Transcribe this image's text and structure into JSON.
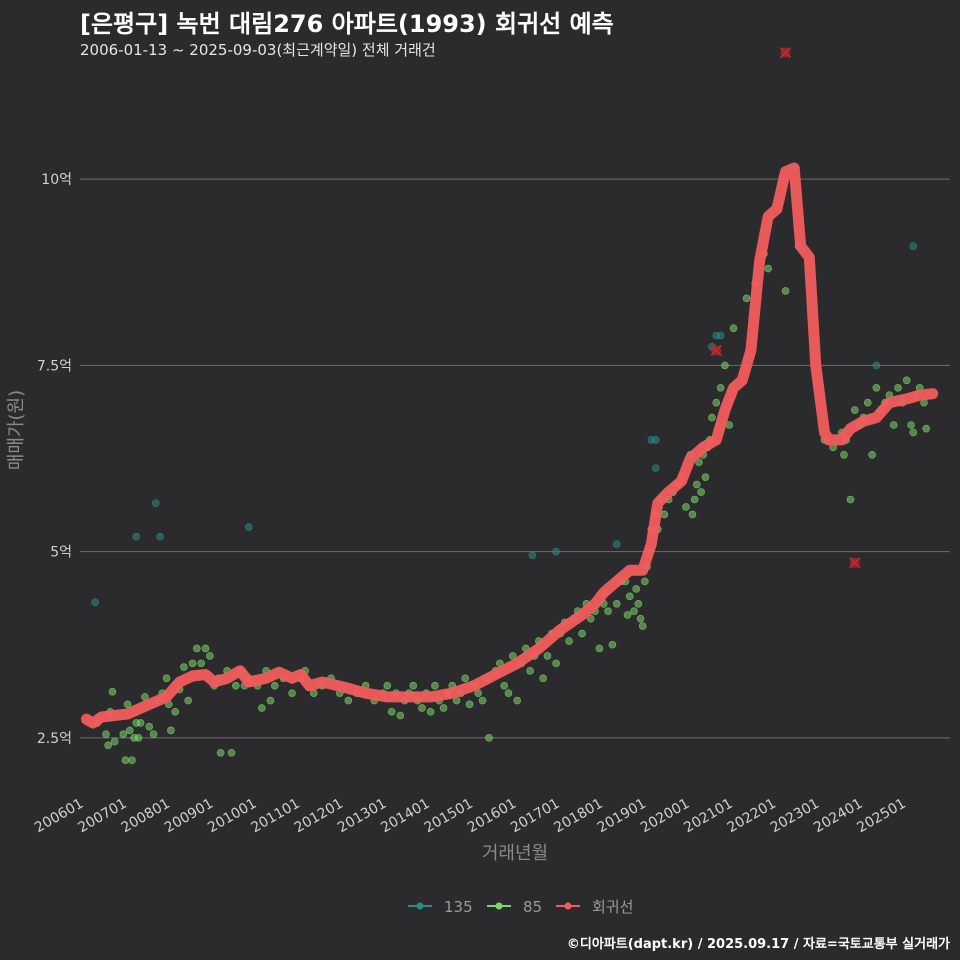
{
  "title": "[은평구] 녹번 대림276 아파트(1993) 회귀선 예측",
  "subtitle": "2006-01-13 ~ 2025-09-03(최근계약일) 전체 거래건",
  "credit": "©디아파트(dapt.kr) / 2025.09.17 / 자료=국토교통부 실거래가",
  "chart_data": {
    "type": "scatter",
    "xlabel": "거래년월",
    "ylabel": "매매가(원)",
    "xlim": [
      2005.9,
      2026.0
    ],
    "ylim": [
      1.8,
      11.6
    ],
    "x_ticks": [
      2006,
      2007,
      2008,
      2009,
      2010,
      2011,
      2012,
      2013,
      2014,
      2015,
      2016,
      2017,
      2018,
      2019,
      2020,
      2021,
      2022,
      2023,
      2024,
      2025
    ],
    "x_tick_labels": [
      "200601",
      "200701",
      "200801",
      "200901",
      "201001",
      "201101",
      "201201",
      "201301",
      "201401",
      "201501",
      "201601",
      "201701",
      "201801",
      "201901",
      "202001",
      "202101",
      "202201",
      "202301",
      "202401",
      "202501"
    ],
    "y_ticks": [
      2.5,
      5,
      7.5,
      10
    ],
    "y_tick_labels": [
      "2.5억",
      "5억",
      "7.5억",
      "10억"
    ],
    "grid": "horizontal",
    "legend_position": "bottom",
    "colors": {
      "s135": "#2a8c84",
      "s85": "#7dd46a",
      "regression": "#f25c5c",
      "outlier": "#c0282d"
    },
    "series": [
      {
        "name": "135",
        "type": "scatter",
        "points": [
          [
            2006.25,
            4.32
          ],
          [
            2007.2,
            5.2
          ],
          [
            2007.65,
            5.65
          ],
          [
            2007.75,
            5.2
          ],
          [
            2009.8,
            5.33
          ],
          [
            2016.35,
            4.95
          ],
          [
            2016.9,
            5.0
          ],
          [
            2018.3,
            5.1
          ],
          [
            2019.1,
            6.5
          ],
          [
            2019.2,
            6.5
          ],
          [
            2019.2,
            6.12
          ],
          [
            2020.5,
            7.75
          ],
          [
            2020.6,
            7.9
          ],
          [
            2020.7,
            7.9
          ],
          [
            2024.3,
            7.5
          ],
          [
            2025.15,
            9.1
          ]
        ]
      },
      {
        "name": "85",
        "type": "scatter",
        "points": [
          [
            2006.3,
            2.7
          ],
          [
            2006.5,
            2.55
          ],
          [
            2006.55,
            2.4
          ],
          [
            2006.6,
            2.85
          ],
          [
            2006.65,
            3.12
          ],
          [
            2006.7,
            2.45
          ],
          [
            2006.9,
            2.55
          ],
          [
            2006.95,
            2.2
          ],
          [
            2007.0,
            2.95
          ],
          [
            2007.05,
            2.6
          ],
          [
            2007.1,
            2.2
          ],
          [
            2007.15,
            2.5
          ],
          [
            2007.2,
            2.7
          ],
          [
            2007.25,
            2.5
          ],
          [
            2007.3,
            2.7
          ],
          [
            2007.4,
            3.05
          ],
          [
            2007.5,
            2.65
          ],
          [
            2007.6,
            2.55
          ],
          [
            2007.7,
            3.0
          ],
          [
            2007.8,
            3.1
          ],
          [
            2007.9,
            3.3
          ],
          [
            2007.95,
            2.95
          ],
          [
            2008.0,
            2.6
          ],
          [
            2008.1,
            2.85
          ],
          [
            2008.2,
            3.15
          ],
          [
            2008.3,
            3.45
          ],
          [
            2008.4,
            3.0
          ],
          [
            2008.5,
            3.5
          ],
          [
            2008.6,
            3.7
          ],
          [
            2008.7,
            3.5
          ],
          [
            2008.8,
            3.7
          ],
          [
            2008.9,
            3.6
          ],
          [
            2009.0,
            3.2
          ],
          [
            2009.1,
            3.3
          ],
          [
            2009.15,
            2.3
          ],
          [
            2009.3,
            3.4
          ],
          [
            2009.4,
            2.3
          ],
          [
            2009.5,
            3.2
          ],
          [
            2009.6,
            3.4
          ],
          [
            2009.7,
            3.2
          ],
          [
            2009.8,
            3.3
          ],
          [
            2010.0,
            3.2
          ],
          [
            2010.1,
            2.9
          ],
          [
            2010.2,
            3.4
          ],
          [
            2010.3,
            3.0
          ],
          [
            2010.4,
            3.2
          ],
          [
            2010.6,
            3.3
          ],
          [
            2010.8,
            3.1
          ],
          [
            2011.0,
            3.3
          ],
          [
            2011.1,
            3.4
          ],
          [
            2011.3,
            3.1
          ],
          [
            2011.5,
            3.2
          ],
          [
            2011.7,
            3.3
          ],
          [
            2011.9,
            3.1
          ],
          [
            2012.1,
            3.0
          ],
          [
            2012.3,
            3.1
          ],
          [
            2012.5,
            3.2
          ],
          [
            2012.7,
            3.0
          ],
          [
            2012.9,
            3.1
          ],
          [
            2013.0,
            3.2
          ],
          [
            2013.1,
            2.85
          ],
          [
            2013.2,
            3.1
          ],
          [
            2013.3,
            2.8
          ],
          [
            2013.4,
            3.0
          ],
          [
            2013.5,
            3.1
          ],
          [
            2013.6,
            3.2
          ],
          [
            2013.7,
            3.0
          ],
          [
            2013.8,
            2.9
          ],
          [
            2013.9,
            3.1
          ],
          [
            2014.0,
            2.85
          ],
          [
            2014.1,
            3.2
          ],
          [
            2014.2,
            3.0
          ],
          [
            2014.3,
            2.9
          ],
          [
            2014.4,
            3.1
          ],
          [
            2014.5,
            3.2
          ],
          [
            2014.6,
            3.0
          ],
          [
            2014.7,
            3.1
          ],
          [
            2014.8,
            3.3
          ],
          [
            2014.9,
            2.95
          ],
          [
            2015.0,
            3.2
          ],
          [
            2015.1,
            3.1
          ],
          [
            2015.2,
            3.0
          ],
          [
            2015.3,
            3.3
          ],
          [
            2015.35,
            2.5
          ],
          [
            2015.5,
            3.4
          ],
          [
            2015.6,
            3.5
          ],
          [
            2015.7,
            3.2
          ],
          [
            2015.8,
            3.1
          ],
          [
            2015.9,
            3.6
          ],
          [
            2016.0,
            3.0
          ],
          [
            2016.1,
            3.5
          ],
          [
            2016.2,
            3.7
          ],
          [
            2016.3,
            3.4
          ],
          [
            2016.4,
            3.6
          ],
          [
            2016.5,
            3.8
          ],
          [
            2016.6,
            3.3
          ],
          [
            2016.7,
            3.6
          ],
          [
            2016.8,
            3.9
          ],
          [
            2016.9,
            3.5
          ],
          [
            2017.0,
            3.9
          ],
          [
            2017.1,
            4.05
          ],
          [
            2017.2,
            3.8
          ],
          [
            2017.3,
            4.1
          ],
          [
            2017.4,
            4.2
          ],
          [
            2017.5,
            3.9
          ],
          [
            2017.6,
            4.3
          ],
          [
            2017.7,
            4.1
          ],
          [
            2017.8,
            4.2
          ],
          [
            2017.9,
            3.7
          ],
          [
            2018.0,
            4.3
          ],
          [
            2018.05,
            4.45
          ],
          [
            2018.1,
            4.2
          ],
          [
            2018.2,
            3.75
          ],
          [
            2018.3,
            4.3
          ],
          [
            2018.4,
            4.6
          ],
          [
            2018.5,
            4.6
          ],
          [
            2018.55,
            4.15
          ],
          [
            2018.6,
            4.4
          ],
          [
            2018.7,
            4.2
          ],
          [
            2018.75,
            4.5
          ],
          [
            2018.8,
            4.3
          ],
          [
            2018.85,
            4.1
          ],
          [
            2018.9,
            4.0
          ],
          [
            2018.95,
            4.6
          ],
          [
            2019.0,
            4.8
          ],
          [
            2019.05,
            5.0
          ],
          [
            2019.1,
            5.3
          ],
          [
            2019.2,
            5.5
          ],
          [
            2019.25,
            5.3
          ],
          [
            2019.3,
            5.7
          ],
          [
            2019.4,
            5.5
          ],
          [
            2019.5,
            5.7
          ],
          [
            2019.6,
            5.8
          ],
          [
            2019.7,
            5.9
          ],
          [
            2019.8,
            6.0
          ],
          [
            2019.9,
            5.6
          ],
          [
            2020.0,
            6.3
          ],
          [
            2020.05,
            5.5
          ],
          [
            2020.1,
            5.7
          ],
          [
            2020.15,
            5.9
          ],
          [
            2020.2,
            6.2
          ],
          [
            2020.25,
            5.8
          ],
          [
            2020.3,
            6.3
          ],
          [
            2020.35,
            6.0
          ],
          [
            2020.4,
            6.4
          ],
          [
            2020.45,
            6.5
          ],
          [
            2020.5,
            6.8
          ],
          [
            2020.6,
            7.0
          ],
          [
            2020.7,
            7.2
          ],
          [
            2020.8,
            7.5
          ],
          [
            2020.9,
            6.7
          ],
          [
            2021.0,
            8.0
          ],
          [
            2021.3,
            8.4
          ],
          [
            2021.5,
            8.6
          ],
          [
            2021.7,
            9.0
          ],
          [
            2021.8,
            8.8
          ],
          [
            2022.2,
            8.5
          ],
          [
            2022.5,
            9.1
          ],
          [
            2023.1,
            6.5
          ],
          [
            2023.3,
            6.4
          ],
          [
            2023.5,
            6.6
          ],
          [
            2023.55,
            6.3
          ],
          [
            2023.6,
            6.5
          ],
          [
            2023.7,
            5.7
          ],
          [
            2023.8,
            6.9
          ],
          [
            2023.9,
            6.7
          ],
          [
            2024.0,
            6.8
          ],
          [
            2024.1,
            7.0
          ],
          [
            2024.2,
            6.3
          ],
          [
            2024.3,
            7.2
          ],
          [
            2024.4,
            6.9
          ],
          [
            2024.5,
            7.0
          ],
          [
            2024.6,
            7.1
          ],
          [
            2024.7,
            6.7
          ],
          [
            2024.8,
            7.2
          ],
          [
            2024.9,
            7.0
          ],
          [
            2025.0,
            7.3
          ],
          [
            2025.1,
            6.7
          ],
          [
            2025.15,
            6.6
          ],
          [
            2025.2,
            7.1
          ],
          [
            2025.3,
            7.2
          ],
          [
            2025.4,
            7.0
          ],
          [
            2025.45,
            6.65
          ]
        ]
      },
      {
        "name": "회귀선",
        "type": "line",
        "points": [
          [
            2006.05,
            2.75
          ],
          [
            2006.2,
            2.7
          ],
          [
            2006.4,
            2.78
          ],
          [
            2007.0,
            2.82
          ],
          [
            2007.5,
            2.95
          ],
          [
            2007.9,
            3.05
          ],
          [
            2008.2,
            3.25
          ],
          [
            2008.5,
            3.33
          ],
          [
            2008.8,
            3.35
          ],
          [
            2009.0,
            3.25
          ],
          [
            2009.3,
            3.3
          ],
          [
            2009.6,
            3.4
          ],
          [
            2009.8,
            3.25
          ],
          [
            2010.2,
            3.3
          ],
          [
            2010.5,
            3.38
          ],
          [
            2010.8,
            3.3
          ],
          [
            2011.0,
            3.35
          ],
          [
            2011.2,
            3.2
          ],
          [
            2011.5,
            3.25
          ],
          [
            2012.0,
            3.18
          ],
          [
            2012.5,
            3.1
          ],
          [
            2013.0,
            3.05
          ],
          [
            2013.5,
            3.05
          ],
          [
            2014.0,
            3.05
          ],
          [
            2014.5,
            3.1
          ],
          [
            2015.0,
            3.2
          ],
          [
            2015.5,
            3.35
          ],
          [
            2016.0,
            3.5
          ],
          [
            2016.5,
            3.7
          ],
          [
            2017.0,
            3.95
          ],
          [
            2017.5,
            4.15
          ],
          [
            2017.8,
            4.3
          ],
          [
            2018.0,
            4.45
          ],
          [
            2018.3,
            4.6
          ],
          [
            2018.6,
            4.75
          ],
          [
            2018.9,
            4.75
          ],
          [
            2019.1,
            5.1
          ],
          [
            2019.25,
            5.65
          ],
          [
            2019.5,
            5.8
          ],
          [
            2019.8,
            5.95
          ],
          [
            2020.0,
            6.25
          ],
          [
            2020.3,
            6.4
          ],
          [
            2020.6,
            6.5
          ],
          [
            2020.8,
            6.9
          ],
          [
            2021.0,
            7.2
          ],
          [
            2021.2,
            7.3
          ],
          [
            2021.4,
            7.7
          ],
          [
            2021.6,
            8.9
          ],
          [
            2021.8,
            9.5
          ],
          [
            2022.0,
            9.6
          ],
          [
            2022.2,
            10.1
          ],
          [
            2022.4,
            10.15
          ],
          [
            2022.55,
            9.1
          ],
          [
            2022.75,
            8.95
          ],
          [
            2022.9,
            7.5
          ],
          [
            2023.1,
            6.6
          ],
          [
            2023.2,
            6.5
          ],
          [
            2023.5,
            6.5
          ],
          [
            2023.7,
            6.65
          ],
          [
            2024.0,
            6.75
          ],
          [
            2024.3,
            6.8
          ],
          [
            2024.6,
            7.0
          ],
          [
            2025.0,
            7.05
          ],
          [
            2025.3,
            7.1
          ],
          [
            2025.6,
            7.12
          ]
        ]
      }
    ],
    "outliers": [
      [
        2020.6,
        7.7
      ],
      [
        2022.2,
        11.7
      ],
      [
        2023.8,
        4.85
      ]
    ]
  },
  "legend": [
    {
      "label": "135",
      "color": "#2a8c84"
    },
    {
      "label": "85",
      "color": "#7dd46a"
    },
    {
      "label": "회귀선",
      "color": "#f25c5c"
    }
  ]
}
